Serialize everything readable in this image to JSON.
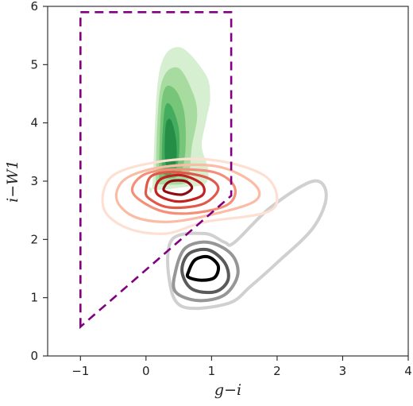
{
  "chart_data": {
    "type": "contour",
    "xlabel": "g−i",
    "ylabel": "i−W1",
    "xlim": [
      -1.5,
      4
    ],
    "ylim": [
      0,
      6
    ],
    "xticks": [
      -1,
      0,
      1,
      2,
      3,
      4
    ],
    "yticks": [
      0,
      1,
      2,
      3,
      4,
      5,
      6
    ],
    "grid": false,
    "selection_region": {
      "style": "dashed",
      "color": "#800080",
      "x": [
        -1.0,
        -1.0,
        1.3,
        1.3,
        1.3,
        -1.0
      ],
      "y": [
        0.5,
        5.9,
        5.9,
        3.05,
        2.75,
        0.5
      ]
    },
    "series": [
      {
        "color_scale": "greens",
        "fill": true,
        "peak": [
          0.35,
          3.75
        ],
        "levels": [
          {
            "color": "#d3eecd",
            "x": [
              0.1,
              0.2,
              0.5,
              0.9,
              0.98,
              0.92,
              0.85,
              0.95,
              0.9,
              0.6,
              0.2,
              0.05
            ],
            "y": [
              2.95,
              4.85,
              5.3,
              4.85,
              4.45,
              4.05,
              3.6,
              3.2,
              2.95,
              2.9,
              2.85,
              2.9
            ]
          },
          {
            "color": "#a4d99d",
            "x": [
              0.15,
              0.22,
              0.48,
              0.72,
              0.78,
              0.7,
              0.65,
              0.55,
              0.2
            ],
            "y": [
              3.0,
              4.6,
              4.95,
              4.5,
              4.1,
              3.6,
              3.05,
              2.95,
              2.95
            ]
          },
          {
            "color": "#74c476",
            "x": [
              0.2,
              0.25,
              0.42,
              0.58,
              0.6,
              0.5,
              0.25
            ],
            "y": [
              3.1,
              4.45,
              4.6,
              4.2,
              3.5,
              3.1,
              3.05
            ]
          },
          {
            "color": "#41ab5d",
            "x": [
              0.25,
              0.28,
              0.38,
              0.5,
              0.5,
              0.42
            ],
            "y": [
              3.2,
              4.2,
              4.3,
              3.9,
              3.4,
              3.15
            ]
          },
          {
            "color": "#238b45",
            "x": [
              0.3,
              0.3,
              0.38,
              0.46,
              0.45
            ],
            "y": [
              3.3,
              3.95,
              4.05,
              3.7,
              3.3
            ]
          }
        ]
      },
      {
        "color_scale": "reds",
        "fill": false,
        "peak": [
          0.45,
          2.88
        ],
        "levels": [
          {
            "color": "#fde0d2",
            "x": [
              -0.65,
              -0.5,
              0.3,
              1.1,
              1.8,
              2.0,
              1.8,
              0.9,
              0.3,
              -0.3
            ],
            "y": [
              2.55,
              3.1,
              3.35,
              3.35,
              3.1,
              2.7,
              2.45,
              2.3,
              2.1,
              2.2
            ]
          },
          {
            "color": "#fbbca5",
            "x": [
              -0.45,
              -0.3,
              0.3,
              1.1,
              1.65,
              1.65,
              0.9,
              0.3,
              -0.2
            ],
            "y": [
              2.7,
              3.05,
              3.25,
              3.25,
              2.95,
              2.65,
              2.4,
              2.3,
              2.4
            ]
          },
          {
            "color": "#f4907a",
            "x": [
              -0.2,
              -0.05,
              0.4,
              1.05,
              1.35,
              1.25,
              0.7,
              0.2
            ],
            "y": [
              2.8,
              3.1,
              3.2,
              3.15,
              2.9,
              2.6,
              2.45,
              2.5
            ]
          },
          {
            "color": "#e05a4a",
            "x": [
              0.0,
              0.1,
              0.5,
              0.95,
              1.1,
              0.85,
              0.35,
              0.05
            ],
            "y": [
              2.85,
              3.1,
              3.15,
              3.05,
              2.85,
              2.6,
              2.55,
              2.7
            ]
          },
          {
            "color": "#c4201f",
            "x": [
              0.15,
              0.25,
              0.55,
              0.85,
              0.85,
              0.5,
              0.2
            ],
            "y": [
              2.9,
              3.05,
              3.1,
              2.95,
              2.75,
              2.65,
              2.75
            ]
          },
          {
            "color": "#8e0b12",
            "x": [
              0.28,
              0.38,
              0.6,
              0.7,
              0.55,
              0.3
            ],
            "y": [
              2.9,
              3.0,
              3.0,
              2.88,
              2.77,
              2.82
            ]
          }
        ]
      },
      {
        "color_scale": "greys",
        "fill": false,
        "peak": [
          0.9,
          1.52
        ],
        "levels": [
          {
            "color": "#d0d0d0",
            "x": [
              0.35,
              0.4,
              0.9,
              1.2,
              1.35,
              1.9,
              2.55,
              2.75,
              2.55,
              2.0,
              1.6,
              1.25,
              0.55
            ],
            "y": [
              1.35,
              2.0,
              2.1,
              1.95,
              1.95,
              2.55,
              3.0,
              2.75,
              2.2,
              1.6,
              1.2,
              0.9,
              0.85
            ]
          },
          {
            "color": "#969696",
            "x": [
              0.45,
              0.6,
              0.95,
              1.3,
              1.4,
              1.2,
              0.8,
              0.45
            ],
            "y": [
              1.45,
              1.85,
              1.95,
              1.75,
              1.4,
              1.05,
              0.95,
              1.1
            ]
          },
          {
            "color": "#5a5a5a",
            "x": [
              0.55,
              0.65,
              0.95,
              1.2,
              1.25,
              1.05,
              0.7
            ],
            "y": [
              1.45,
              1.75,
              1.82,
              1.6,
              1.3,
              1.1,
              1.15
            ]
          },
          {
            "color": "#000000",
            "x": [
              0.65,
              0.75,
              0.95,
              1.1,
              1.05,
              0.85,
              0.65
            ],
            "y": [
              1.45,
              1.65,
              1.7,
              1.55,
              1.35,
              1.3,
              1.35
            ]
          }
        ]
      }
    ]
  }
}
